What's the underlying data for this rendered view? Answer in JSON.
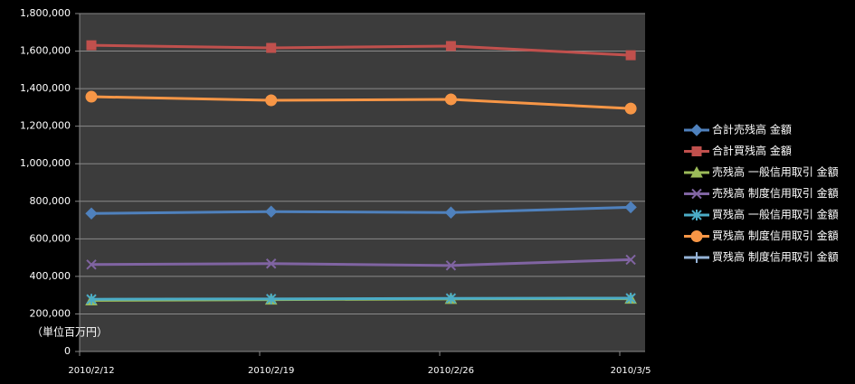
{
  "chart_data": {
    "type": "line",
    "annotation": "（単位百万円）",
    "categories": [
      "2010/2/12",
      "2010/2/19",
      "2010/2/26",
      "2010/3/5"
    ],
    "series": [
      {
        "name": "合計売残高 金額",
        "color": "#4f81bd",
        "marker": "diamond",
        "values": [
          735000,
          745000,
          740000,
          768000
        ]
      },
      {
        "name": "合計買残高 金額",
        "color": "#c0504d",
        "marker": "square",
        "values": [
          1631000,
          1617000,
          1627000,
          1578000
        ]
      },
      {
        "name": "売残高 一般信用取引 金額",
        "color": "#9bbb59",
        "marker": "triangle",
        "values": [
          272000,
          276000,
          280000,
          281000
        ]
      },
      {
        "name": "売残高 制度信用取引 金額",
        "color": "#8064a2",
        "marker": "x",
        "values": [
          463000,
          468000,
          458000,
          489000
        ]
      },
      {
        "name": "買残高 一般信用取引 金額",
        "color": "#4bacc6",
        "marker": "star",
        "values": [
          278000,
          280000,
          283000,
          284000
        ]
      },
      {
        "name": "買残高 制度信用取引 金額",
        "color": "#f79646",
        "marker": "circle",
        "values": [
          1357000,
          1338000,
          1343000,
          1294000
        ]
      },
      {
        "name": "買残高 制度信用取引 金額",
        "color": "#95b3d7",
        "marker": "plus",
        "values": [
          null,
          null,
          null,
          null
        ]
      }
    ],
    "ylim": [
      0,
      1800000
    ],
    "yticks": [
      {
        "value": 0,
        "label": "0"
      },
      {
        "value": 200000,
        "label": "200,000"
      },
      {
        "value": 400000,
        "label": "400,000"
      },
      {
        "value": 600000,
        "label": "600,000"
      },
      {
        "value": 800000,
        "label": "800,000"
      },
      {
        "value": 1000000,
        "label": "1,000,000"
      },
      {
        "value": 1200000,
        "label": "1,200,000"
      },
      {
        "value": 1400000,
        "label": "1,400,000"
      },
      {
        "value": 1600000,
        "label": "1,600,000"
      },
      {
        "value": 1800000,
        "label": "1,800,000"
      }
    ],
    "grid": true,
    "legend": "right"
  }
}
